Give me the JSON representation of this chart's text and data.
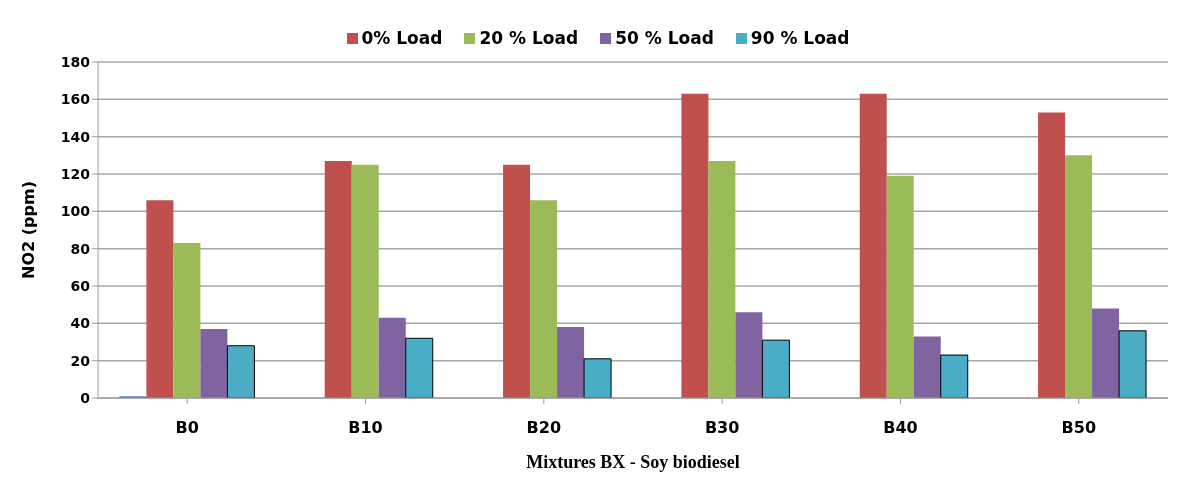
{
  "chart_data": {
    "type": "bar",
    "xlabel": "Mixtures BX - Soy biodiesel",
    "ylabel": "NO2 (ppm)",
    "categories": [
      "B0",
      "B10",
      "B20",
      "B30",
      "B40",
      "B50"
    ],
    "series": [
      {
        "color": "#4f81bd",
        "values": [
          1,
          null,
          null,
          null,
          null,
          null
        ]
      },
      {
        "name": "0% Load",
        "color": "#c0504d",
        "values": [
          106,
          127,
          125,
          163,
          163,
          153
        ]
      },
      {
        "name": "20 % Load",
        "color": "#9bbb59",
        "values": [
          83,
          125,
          106,
          127,
          119,
          130
        ]
      },
      {
        "name": "50 % Load",
        "color": "#8064a2",
        "values": [
          37,
          43,
          38,
          46,
          33,
          48
        ]
      },
      {
        "name": "90 % Load",
        "color": "#4bacc6",
        "values": [
          28,
          32,
          21,
          31,
          23,
          36
        ]
      }
    ],
    "ylim": [
      0,
      180
    ],
    "yticks": [
      0,
      20,
      40,
      60,
      80,
      100,
      120,
      140,
      160,
      180
    ],
    "grid": "y",
    "legend": "top"
  }
}
